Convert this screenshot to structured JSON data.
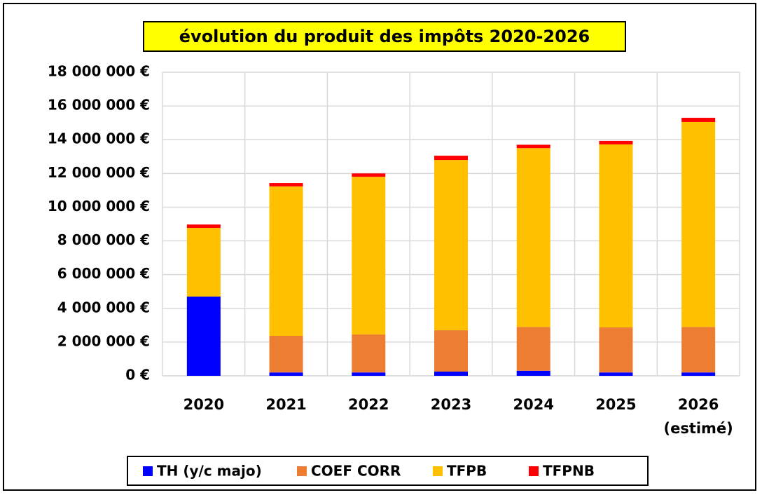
{
  "chart_data": {
    "type": "stacked_bar",
    "title": "évolution du produit des impôts 2020-2026",
    "categories": [
      "2020",
      "2021",
      "2022",
      "2023",
      "2024",
      "2025",
      "2026 (estimé)"
    ],
    "series": [
      {
        "name": "TH (y/c majo)",
        "color": "#0000ff",
        "values": [
          4700000,
          200000,
          200000,
          250000,
          300000,
          200000,
          200000
        ]
      },
      {
        "name": "COEF CORR",
        "color": "#ed7d31",
        "values": [
          0,
          2170000,
          2250000,
          2450000,
          2600000,
          2670000,
          2700000
        ]
      },
      {
        "name": "TFPB",
        "color": "#ffc000",
        "values": [
          4070000,
          8860000,
          9350000,
          10100000,
          10600000,
          10850000,
          12150000
        ]
      },
      {
        "name": "TFPNB",
        "color": "#ff0000",
        "values": [
          200000,
          200000,
          200000,
          250000,
          200000,
          210000,
          250000
        ]
      }
    ],
    "ylim": [
      0,
      18000000
    ],
    "yticks": [
      {
        "value": 0,
        "label": "0 €"
      },
      {
        "value": 2000000,
        "label": "2 000 000 €"
      },
      {
        "value": 4000000,
        "label": "4 000 000 €"
      },
      {
        "value": 6000000,
        "label": "6 000 000 €"
      },
      {
        "value": 8000000,
        "label": "8 000 000 €"
      },
      {
        "value": 10000000,
        "label": "10 000 000 €"
      },
      {
        "value": 12000000,
        "label": "12 000 000 €"
      },
      {
        "value": 14000000,
        "label": "14 000 000 €"
      },
      {
        "value": 16000000,
        "label": "16 000 000 €"
      },
      {
        "value": 18000000,
        "label": "18 000 000 €"
      }
    ],
    "grid": true,
    "legend": "bottom"
  }
}
